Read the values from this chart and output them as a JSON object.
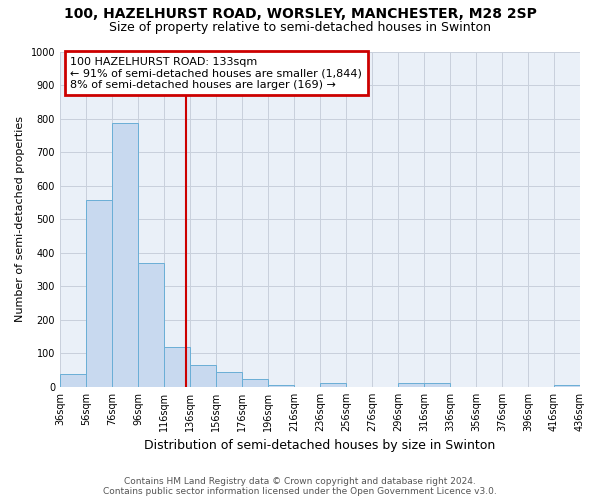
{
  "title1": "100, HAZELHURST ROAD, WORSLEY, MANCHESTER, M28 2SP",
  "title2": "Size of property relative to semi-detached houses in Swinton",
  "xlabel": "Distribution of semi-detached houses by size in Swinton",
  "ylabel": "Number of semi-detached properties",
  "footnote1": "Contains HM Land Registry data © Crown copyright and database right 2024.",
  "footnote2": "Contains public sector information licensed under the Open Government Licence v3.0.",
  "annotation_line1": "100 HAZELHURST ROAD: 133sqm",
  "annotation_line2": "← 91% of semi-detached houses are smaller (1,844)",
  "annotation_line3": "8% of semi-detached houses are larger (169) →",
  "bin_edges": [
    36,
    56,
    76,
    96,
    116,
    136,
    156,
    176,
    196,
    216,
    236,
    256,
    276,
    296,
    316,
    336,
    356,
    376,
    396,
    416,
    436
  ],
  "bin_labels": [
    "36sqm",
    "56sqm",
    "76sqm",
    "96sqm",
    "116sqm",
    "136sqm",
    "156sqm",
    "176sqm",
    "196sqm",
    "216sqm",
    "236sqm",
    "256sqm",
    "276sqm",
    "296sqm",
    "316sqm",
    "336sqm",
    "356sqm",
    "376sqm",
    "396sqm",
    "416sqm",
    "436sqm"
  ],
  "counts": [
    38,
    557,
    786,
    369,
    120,
    64,
    44,
    24,
    5,
    0,
    13,
    0,
    0,
    11,
    11,
    0,
    0,
    0,
    0,
    5
  ],
  "bar_color": "#c8d9ef",
  "bar_edge_color": "#6aaed6",
  "vline_color": "#cc0000",
  "vline_x": 133,
  "ylim": [
    0,
    1000
  ],
  "yticks": [
    0,
    100,
    200,
    300,
    400,
    500,
    600,
    700,
    800,
    900,
    1000
  ],
  "annotation_box_edgecolor": "#cc0000",
  "grid_color": "#c8d0dc",
  "plot_bg_color": "#eaf0f8",
  "fig_bg_color": "#ffffff",
  "title1_fontsize": 10,
  "title2_fontsize": 9,
  "ylabel_fontsize": 8,
  "xlabel_fontsize": 9,
  "tick_fontsize": 7,
  "footnote_fontsize": 6.5,
  "ann_fontsize": 8
}
